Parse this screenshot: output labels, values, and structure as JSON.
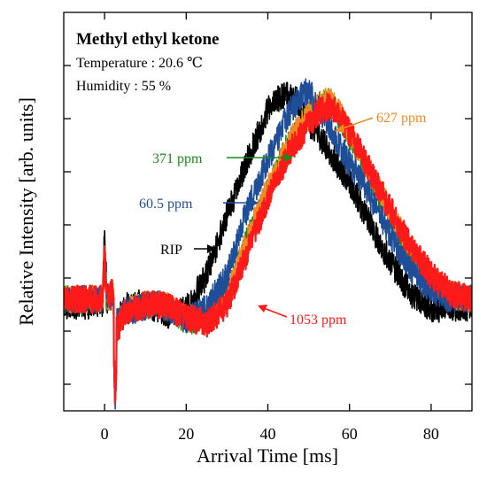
{
  "chart_data": {
    "type": "line",
    "xlabel": "Arrival Time [ms]",
    "ylabel": "Relative Intensity [arb. units]",
    "xlim": [
      -10,
      90
    ],
    "ylim": [
      0,
      1
    ],
    "x_ticks": [
      0,
      20,
      40,
      60,
      80
    ],
    "y_ticks_count": 7,
    "info": {
      "title": "Methyl ethyl ketone",
      "temperature": "Temperature : 20.6 ℃",
      "humidity": "Humidity : 55 %"
    },
    "series": [
      {
        "name": "RIP",
        "color": "#000000",
        "x": [
          -10,
          0,
          2,
          3,
          5,
          8,
          12,
          16,
          20,
          25,
          30,
          35,
          40,
          43,
          45,
          47,
          49,
          52,
          56,
          60,
          65,
          70,
          75,
          80,
          85,
          90
        ],
        "y": [
          0.265,
          0.265,
          0.3,
          0.22,
          0.26,
          0.27,
          0.26,
          0.24,
          0.255,
          0.34,
          0.49,
          0.63,
          0.755,
          0.79,
          0.79,
          0.78,
          0.735,
          0.7,
          0.635,
          0.575,
          0.47,
          0.375,
          0.295,
          0.255,
          0.26,
          0.26
        ]
      },
      {
        "name": "60.5 ppm",
        "color": "#1f4e99",
        "x": [
          -10,
          0,
          2,
          3,
          5,
          8,
          12,
          16,
          20,
          25,
          30,
          35,
          40,
          45,
          48,
          50,
          52,
          55,
          60,
          65,
          70,
          75,
          80,
          85,
          90
        ],
        "y": [
          0.28,
          0.28,
          0.29,
          0.22,
          0.25,
          0.255,
          0.27,
          0.255,
          0.23,
          0.26,
          0.34,
          0.51,
          0.63,
          0.745,
          0.79,
          0.805,
          0.77,
          0.715,
          0.62,
          0.54,
          0.44,
          0.355,
          0.3,
          0.28,
          0.28
        ]
      },
      {
        "name": "371 ppm",
        "color": "#1a8a1a",
        "x": [
          -10,
          0,
          2,
          3,
          5,
          8,
          12,
          16,
          20,
          25,
          30,
          35,
          40,
          45,
          50,
          53,
          55,
          58,
          62,
          66,
          70,
          75,
          80,
          85,
          90
        ],
        "y": [
          0.28,
          0.28,
          0.29,
          0.22,
          0.25,
          0.26,
          0.27,
          0.26,
          0.225,
          0.23,
          0.29,
          0.43,
          0.555,
          0.67,
          0.74,
          0.77,
          0.775,
          0.73,
          0.65,
          0.57,
          0.49,
          0.4,
          0.33,
          0.29,
          0.28
        ]
      },
      {
        "name": "627 ppm",
        "color": "#f08a24",
        "x": [
          -10,
          0,
          2,
          3,
          5,
          8,
          12,
          16,
          20,
          25,
          30,
          35,
          40,
          45,
          50,
          53,
          55,
          58,
          62,
          66,
          70,
          75,
          80,
          85,
          90
        ],
        "y": [
          0.28,
          0.28,
          0.29,
          0.22,
          0.25,
          0.26,
          0.27,
          0.26,
          0.23,
          0.235,
          0.29,
          0.43,
          0.56,
          0.67,
          0.745,
          0.77,
          0.78,
          0.74,
          0.66,
          0.58,
          0.5,
          0.41,
          0.33,
          0.29,
          0.28
        ]
      },
      {
        "name": "1053 ppm",
        "color": "#ff1a1a",
        "x": [
          -10,
          0,
          2,
          3,
          5,
          8,
          12,
          16,
          20,
          25,
          30,
          35,
          40,
          45,
          50,
          53,
          55,
          58,
          62,
          66,
          70,
          75,
          80,
          85,
          90
        ],
        "y": [
          0.28,
          0.28,
          0.3,
          0.2,
          0.25,
          0.26,
          0.27,
          0.26,
          0.235,
          0.22,
          0.265,
          0.4,
          0.53,
          0.645,
          0.72,
          0.755,
          0.765,
          0.735,
          0.66,
          0.585,
          0.505,
          0.415,
          0.34,
          0.295,
          0.28
        ]
      }
    ],
    "annotations": [
      {
        "text": "627 ppm",
        "color": "#f08a24"
      },
      {
        "text": "371 ppm",
        "color": "#1a8a1a"
      },
      {
        "text": "60.5 ppm",
        "color": "#1f4e99"
      },
      {
        "text": "RIP",
        "color": "#000000"
      },
      {
        "text": "1053 ppm",
        "color": "#ff1a1a"
      }
    ]
  }
}
